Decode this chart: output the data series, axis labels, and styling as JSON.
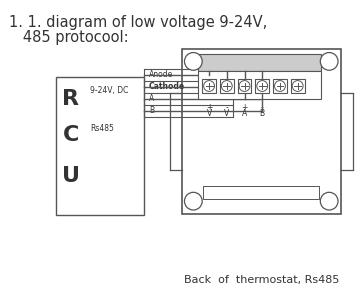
{
  "title_line1": "1. 1. diagram of low voltage 9-24V,",
  "title_line2": "   485 protocool:",
  "title_fontsize": 10.5,
  "bg_color": "#ffffff",
  "line_color": "#555555",
  "text_color": "#333333",
  "footer_text": "Back  of  thermostat, Rs485",
  "footer_fontsize": 8
}
